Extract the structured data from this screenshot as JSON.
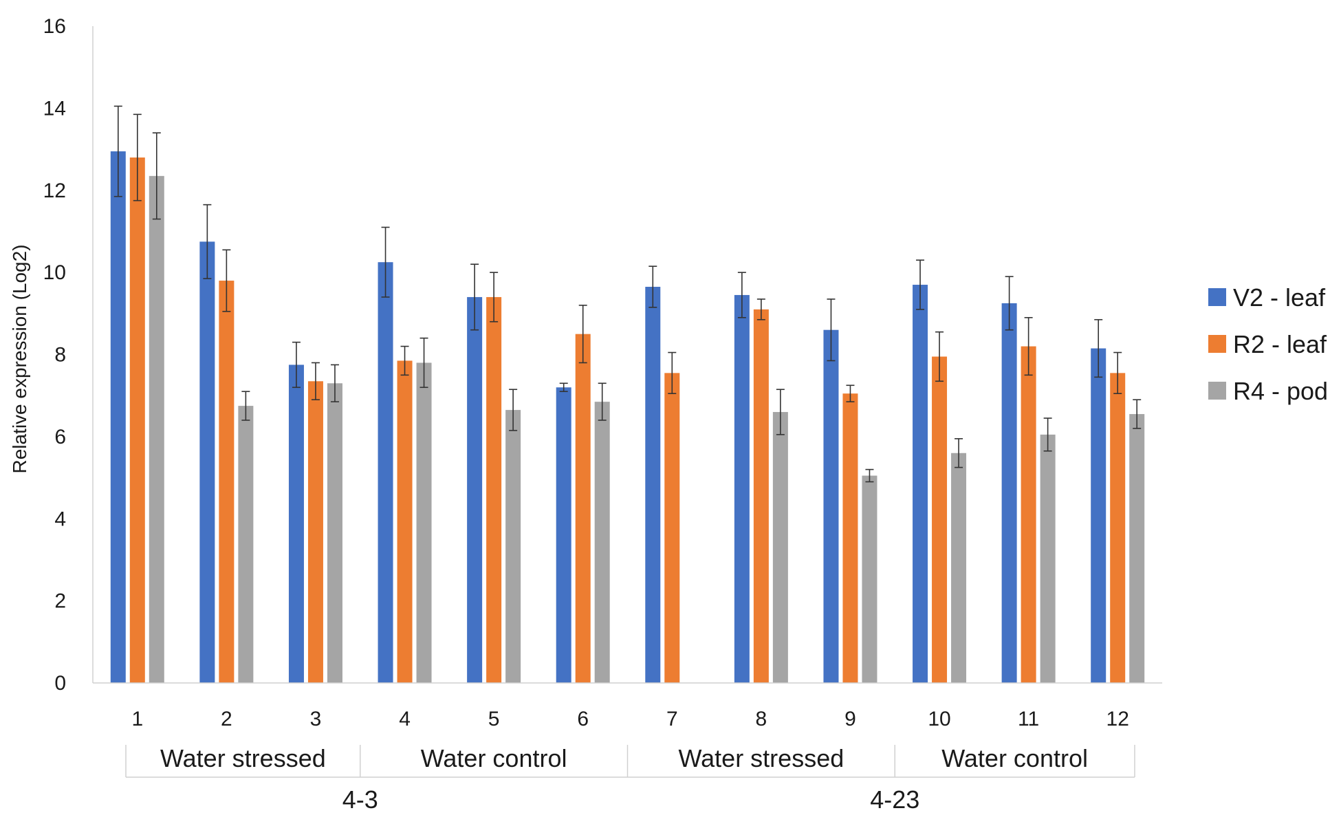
{
  "chart_data": {
    "type": "bar",
    "title": "",
    "xlabel": "",
    "ylabel": "Relative expression (Log2)",
    "ylim": [
      0,
      16
    ],
    "yticks": [
      0,
      2,
      4,
      6,
      8,
      10,
      12,
      14,
      16
    ],
    "grid": false,
    "legend_position": "right",
    "categories": [
      "1",
      "2",
      "3",
      "4",
      "5",
      "6",
      "7",
      "8",
      "9",
      "10",
      "11",
      "12"
    ],
    "series": [
      {
        "name": "V2 - leaf",
        "color": "#4472C4",
        "values": [
          12.95,
          10.75,
          7.75,
          10.25,
          9.4,
          7.2,
          9.65,
          9.45,
          8.6,
          9.7,
          9.25,
          8.15
        ],
        "errors": [
          1.1,
          0.9,
          0.55,
          0.85,
          0.8,
          0.1,
          0.5,
          0.55,
          0.75,
          0.6,
          0.65,
          0.7
        ]
      },
      {
        "name": "R2 - leaf",
        "color": "#ED7D31",
        "values": [
          12.8,
          9.8,
          7.35,
          7.85,
          9.4,
          8.5,
          7.55,
          9.1,
          7.05,
          7.95,
          8.2,
          7.55
        ],
        "errors": [
          1.05,
          0.75,
          0.45,
          0.35,
          0.6,
          0.7,
          0.5,
          0.25,
          0.2,
          0.6,
          0.7,
          0.5
        ]
      },
      {
        "name": "R4 - pod",
        "color": "#A5A5A5",
        "values": [
          12.35,
          6.75,
          7.3,
          7.8,
          6.65,
          6.85,
          null,
          6.6,
          5.05,
          5.6,
          6.05,
          6.55
        ],
        "errors": [
          1.05,
          0.35,
          0.45,
          0.6,
          0.5,
          0.45,
          null,
          0.55,
          0.15,
          0.35,
          0.4,
          0.35
        ]
      }
    ],
    "condition_groups": [
      {
        "label": "Water stressed",
        "span": [
          1,
          3
        ]
      },
      {
        "label": "Water control",
        "span": [
          4,
          6
        ]
      },
      {
        "label": "Water stressed",
        "span": [
          7,
          9
        ]
      },
      {
        "label": "Water control",
        "span": [
          10,
          12
        ]
      }
    ],
    "time_groups": [
      {
        "label": "4-3",
        "span": [
          1,
          6
        ]
      },
      {
        "label": "4-23",
        "span": [
          7,
          12
        ]
      }
    ]
  }
}
